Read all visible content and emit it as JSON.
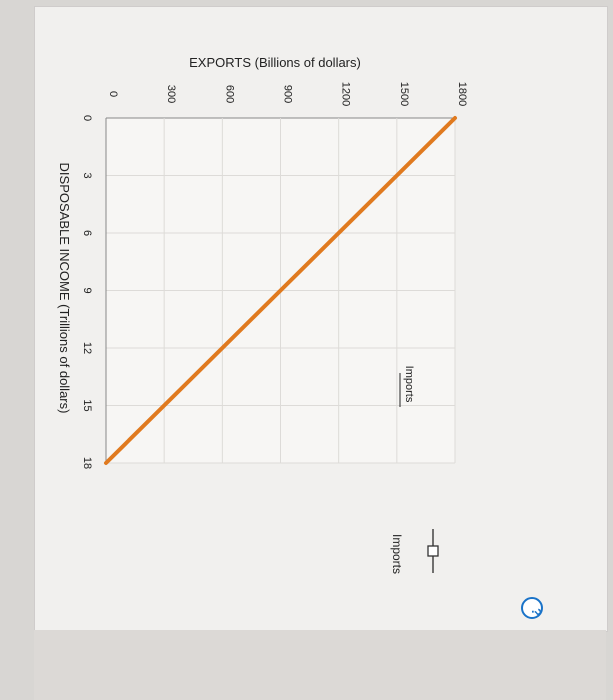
{
  "help": {
    "label": "?"
  },
  "chart_data": {
    "type": "line",
    "xlabel": "DISPOSABLE INCOME (Trillions of dollars)",
    "ylabel": "EXPORTS (Billions of dollars)",
    "x_ticks": [
      "0",
      "3",
      "6",
      "9",
      "12",
      "15",
      "18"
    ],
    "y_ticks": [
      "0",
      "300",
      "600",
      "900",
      "1200",
      "1500",
      "1800"
    ],
    "xlim": [
      0,
      18
    ],
    "ylim": [
      0,
      1800
    ],
    "grid": true,
    "series": [
      {
        "name": "Imports",
        "x": [
          0,
          18
        ],
        "y": [
          1800,
          0
        ],
        "color": "#e07a1f"
      }
    ],
    "annotations": [
      {
        "text": "Imports"
      }
    ]
  },
  "legend": {
    "label": "Imports",
    "icon": "line-square-marker-icon"
  }
}
